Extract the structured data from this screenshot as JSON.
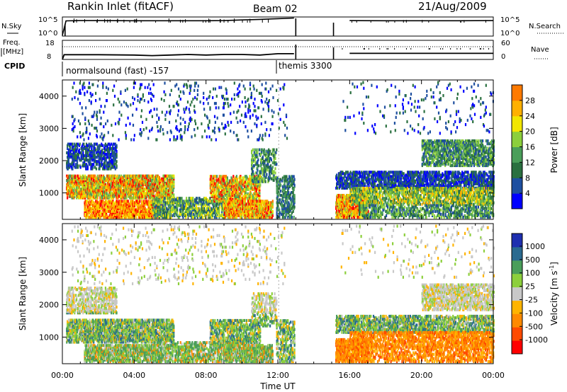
{
  "header": {
    "site": "Rankin Inlet (fitACF)",
    "beam": "Beam 02",
    "date": "21/Aug/2009"
  },
  "strip_labels": {
    "nsky": "N.Sky",
    "nsearch": "N.Search",
    "freq_line1": "Freq.",
    "freq_line2": "[MHz]",
    "nave": "Nave",
    "cpid": "CPID"
  },
  "cpid_segments": [
    {
      "label": "normalsound (fast) -157",
      "start_hr": 0,
      "end_hr": 12
    },
    {
      "label": "themis 3300",
      "start_hr": 12,
      "end_hr": 24
    }
  ],
  "colors": {
    "power_scale": [
      "#0000ff",
      "#1e4fa0",
      "#2a7040",
      "#4a9e5a",
      "#8ccf3c",
      "#f2e600",
      "#ffb000",
      "#ff7a00",
      "#ff0000"
    ],
    "velocity_scale": [
      "#ff0000",
      "#ff4a00",
      "#ff8a00",
      "#ffb400",
      "#c8c8c8",
      "#8ccf3c",
      "#4a9e5a",
      "#2a6a90",
      "#1e2fb0"
    ]
  },
  "chart_data": [
    {
      "type": "line",
      "name": "N.Sky / N.Search",
      "x": [
        0,
        0.2,
        1,
        2,
        4,
        6,
        8,
        9,
        10,
        11,
        12,
        12.9,
        15.1,
        16,
        18,
        20,
        22,
        24
      ],
      "nsky": [
        1,
        10000,
        12000,
        12000,
        11000,
        11000,
        11000,
        12000,
        18000,
        25000,
        40000,
        60000,
        null,
        12000,
        11000,
        11000,
        11000,
        12000
      ],
      "nsky_ticks": [
        "10^5",
        "10^0"
      ],
      "nsearch_ticks": [
        "10^5",
        "10^0"
      ],
      "gap_hours": [
        13.0,
        15.1
      ]
    },
    {
      "type": "line",
      "name": "Freq / Nave",
      "x": [
        0,
        0.1,
        2,
        4,
        5,
        6,
        7,
        8,
        9,
        10,
        11,
        12,
        12.9,
        15.1,
        16,
        18,
        20,
        22,
        24
      ],
      "freq_mhz": [
        8,
        10.5,
        10.5,
        10.3,
        10.0,
        10.3,
        10.6,
        10.3,
        10.6,
        10.6,
        10.3,
        11.0,
        11.0,
        null,
        11.2,
        11.2,
        11.2,
        11.2,
        11.2
      ],
      "freq_ticks": [
        "18",
        "8"
      ],
      "nave_ticks": [
        "60",
        "0"
      ]
    },
    {
      "type": "heatmap",
      "name": "Power",
      "ylabel": "Slant Range [km]",
      "x_ticks": [
        "00:00",
        "04:00",
        "08:00",
        "12:00",
        "16:00",
        "20:00",
        "00:00"
      ],
      "y_ticks": [
        "1000",
        "2000",
        "3000",
        "4000"
      ],
      "ylim": [
        180,
        4500
      ],
      "colorbar_label": "Power [dB]",
      "colorbar_ticks": [
        "4",
        "8",
        "12",
        "16",
        "20",
        "24",
        "28"
      ],
      "colorbar_range": [
        0,
        30
      ]
    },
    {
      "type": "heatmap",
      "name": "Velocity",
      "ylabel": "Slant Range [km]",
      "xlabel": "Time UT",
      "x_ticks": [
        "00:00",
        "04:00",
        "08:00",
        "12:00",
        "16:00",
        "20:00",
        "00:00"
      ],
      "y_ticks": [
        "1000",
        "2000",
        "3000",
        "4000"
      ],
      "ylim": [
        180,
        4500
      ],
      "colorbar_label": "Velocity [m s",
      "colorbar_label_sup": "-1",
      "colorbar_label_end": "]",
      "colorbar_ticks": [
        "1000",
        "500",
        "100",
        "25",
        "-25",
        "-100",
        "-500",
        "-1000"
      ]
    }
  ]
}
